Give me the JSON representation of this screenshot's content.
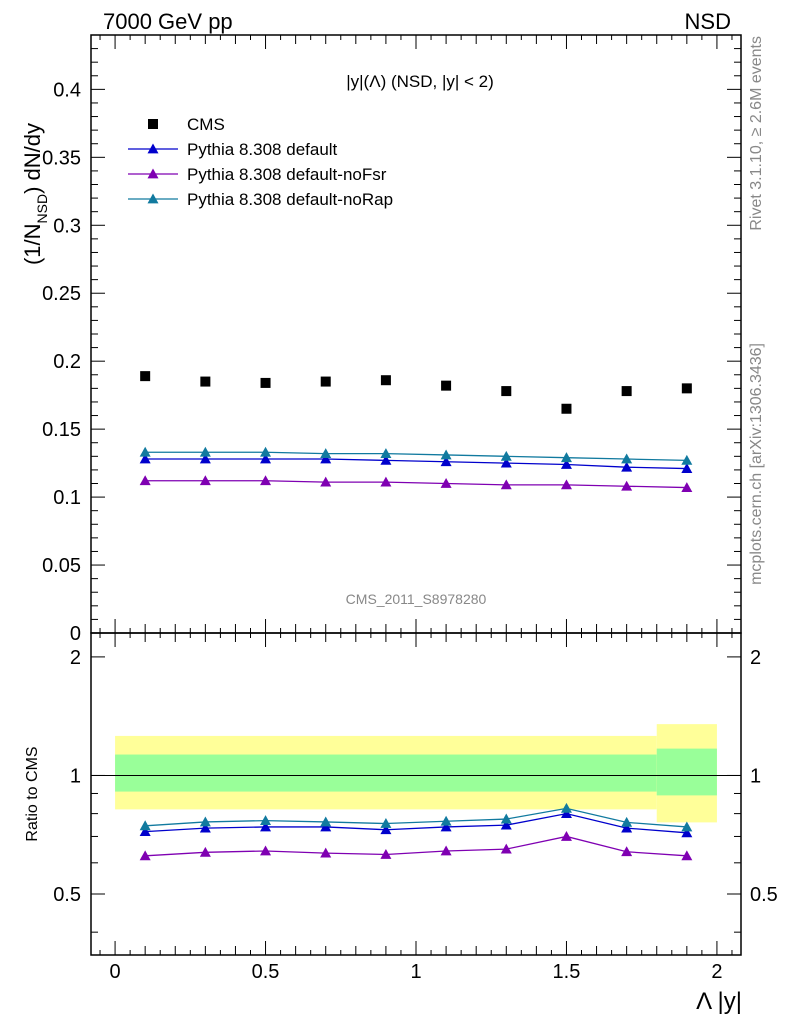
{
  "header": {
    "left": "7000 GeV pp",
    "right": "NSD"
  },
  "side_text": {
    "rivet": "Rivet 3.1.10, ≥ 2.6M events",
    "mcplots": "mcplots.cern.ch [arXiv:1306.3436]"
  },
  "analysis_id": "CMS_2011_S8978280",
  "chart_data": [
    {
      "type": "scatter",
      "title": "|y|(Λ) (NSD, |y| < 2)",
      "xlabel": "Λ |y|",
      "ylabel": "(1/N_NSD) dN/dy",
      "xlim": [
        -0.08,
        2.08
      ],
      "ylim": [
        0,
        0.44
      ],
      "yticks": [
        "0",
        "0.05",
        "0.1",
        "0.15",
        "0.2",
        "0.25",
        "0.3",
        "0.35",
        "0.4"
      ],
      "ytick_values": [
        0,
        0.05,
        0.1,
        0.15,
        0.2,
        0.25,
        0.3,
        0.35,
        0.4
      ],
      "legend_position": "top-left",
      "grid": false,
      "x": [
        0.1,
        0.3,
        0.5,
        0.7,
        0.9,
        1.1,
        1.3,
        1.5,
        1.7,
        1.9
      ],
      "series": [
        {
          "name": "CMS",
          "marker": "square",
          "color": "#000000",
          "values": [
            0.189,
            0.185,
            0.184,
            0.185,
            0.186,
            0.182,
            0.178,
            0.165,
            0.178,
            0.18
          ]
        },
        {
          "name": "Pythia 8.308 default",
          "marker": "triangle",
          "color": "#0000cc",
          "values": [
            0.128,
            0.128,
            0.128,
            0.128,
            0.127,
            0.126,
            0.125,
            0.124,
            0.122,
            0.121
          ]
        },
        {
          "name": "Pythia 8.308 default-noFsr",
          "marker": "triangle",
          "color": "#7f00b2",
          "values": [
            0.112,
            0.112,
            0.112,
            0.111,
            0.111,
            0.11,
            0.109,
            0.109,
            0.108,
            0.107
          ]
        },
        {
          "name": "Pythia 8.308 default-noRap",
          "marker": "triangle",
          "color": "#117a9f",
          "values": [
            0.133,
            0.133,
            0.133,
            0.132,
            0.132,
            0.131,
            0.13,
            0.129,
            0.128,
            0.127
          ]
        }
      ]
    },
    {
      "type": "line",
      "ylabel": "Ratio to CMS",
      "xlabel": "Λ |y|",
      "xlim": [
        -0.08,
        2.08
      ],
      "ylim": [
        0.35,
        2.3
      ],
      "yticks": [
        "0.5",
        "1",
        "2"
      ],
      "ytick_values": [
        0.5,
        1,
        2
      ],
      "xticks": [
        "0",
        "0.5",
        "1",
        "1.5",
        "2"
      ],
      "xtick_values": [
        0,
        0.5,
        1,
        1.5,
        2
      ],
      "x": [
        0.1,
        0.3,
        0.5,
        0.7,
        0.9,
        1.1,
        1.3,
        1.5,
        1.7,
        1.9
      ],
      "bands": [
        {
          "x_range": [
            0.0,
            1.8
          ],
          "outer": [
            0.82,
            1.26
          ],
          "inner": [
            0.91,
            1.13
          ]
        },
        {
          "x_range": [
            1.8,
            2.0
          ],
          "outer": [
            0.76,
            1.35
          ],
          "inner": [
            0.89,
            1.17
          ]
        }
      ],
      "band_colors": {
        "outer": "#ffff99",
        "inner": "#99ff99"
      },
      "series": [
        {
          "name": "Pythia 8.308 default",
          "color": "#0000cc",
          "values": [
            0.72,
            0.735,
            0.74,
            0.74,
            0.728,
            0.74,
            0.748,
            0.8,
            0.735,
            0.715
          ]
        },
        {
          "name": "Pythia 8.308 default-noFsr",
          "color": "#7f00b2",
          "values": [
            0.625,
            0.638,
            0.643,
            0.635,
            0.63,
            0.643,
            0.65,
            0.7,
            0.64,
            0.625
          ]
        },
        {
          "name": "Pythia 8.308 default-noRap",
          "color": "#117a9f",
          "values": [
            0.745,
            0.762,
            0.768,
            0.762,
            0.755,
            0.765,
            0.775,
            0.825,
            0.76,
            0.74
          ]
        }
      ]
    }
  ]
}
